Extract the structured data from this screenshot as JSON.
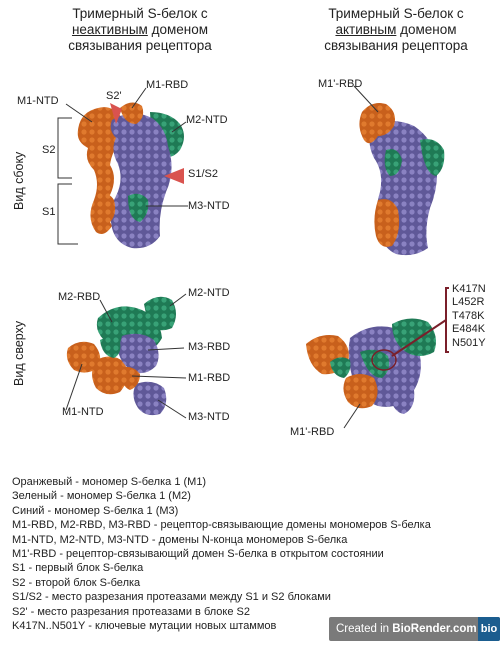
{
  "headers": {
    "left": {
      "line1": "Тримерный S-белок с",
      "underlined": "неактивным",
      "rest": " доменом",
      "line3": "связывания рецептора"
    },
    "right": {
      "line1": "Тримерный S-белок с",
      "underlined": "активным",
      "rest": " доменом",
      "line3": "связывания рецептора"
    }
  },
  "row_labels": {
    "side": "Вид сбоку",
    "top": "Вид сверху"
  },
  "side_inactive": {
    "m1_ntd": "M1-NTD",
    "s2_prime": "S2'",
    "m1_rbd": "M1-RBD",
    "m2_ntd": "M2-NTD",
    "s1s2": "S1/S2",
    "m3_ntd": "M3-NTD",
    "s2": "S2",
    "s1": "S1"
  },
  "side_active": {
    "m1p_rbd": "M1'-RBD"
  },
  "top_inactive": {
    "m2_rbd": "M2-RBD",
    "m2_ntd": "M2-NTD",
    "m3_rbd": "M3-RBD",
    "m1_rbd": "M1-RBD",
    "m1_ntd": "M1-NTD",
    "m3_ntd": "M3-NTD"
  },
  "top_active": {
    "mutations": [
      "K417N",
      "L452R",
      "T478K",
      "E484K",
      "N501Y"
    ],
    "m1p_rbd": "M1'-RBD"
  },
  "legend": [
    "Оранжевый - мономер S-белка 1 (M1)",
    "Зеленый - мономер S-белка 1 (M2)",
    "Синий - мономер S-белка 1 (M3)",
    "M1-RBD, M2-RBD, M3-RBD - рецептор-связывающие домены мономеров S-белка",
    "M1-NTD, M2-NTD, M3-NTD - домены N-конца мономеров S-белка",
    "M1'-RBD - рецептор-связывающий домен S-белка в открытом состоянии",
    "S1 - первый блок S-белка",
    "S2 - второй блок S-белка",
    "S1/S2 - место разрезания протеазами между S1 и S2 блоками",
    "S2' - место разрезания протеазами в блоке S2",
    "K417N..N501Y - ключевые мутации новых штаммов"
  ],
  "badge": {
    "prefix": "Created in ",
    "brand": "BioRender.com",
    "logo": "bio"
  },
  "colors": {
    "orange": "#c8601c",
    "green": "#2b8a63",
    "blue": "#6f67a8",
    "red": "#d9534f",
    "maroon": "#7a1f2a"
  }
}
